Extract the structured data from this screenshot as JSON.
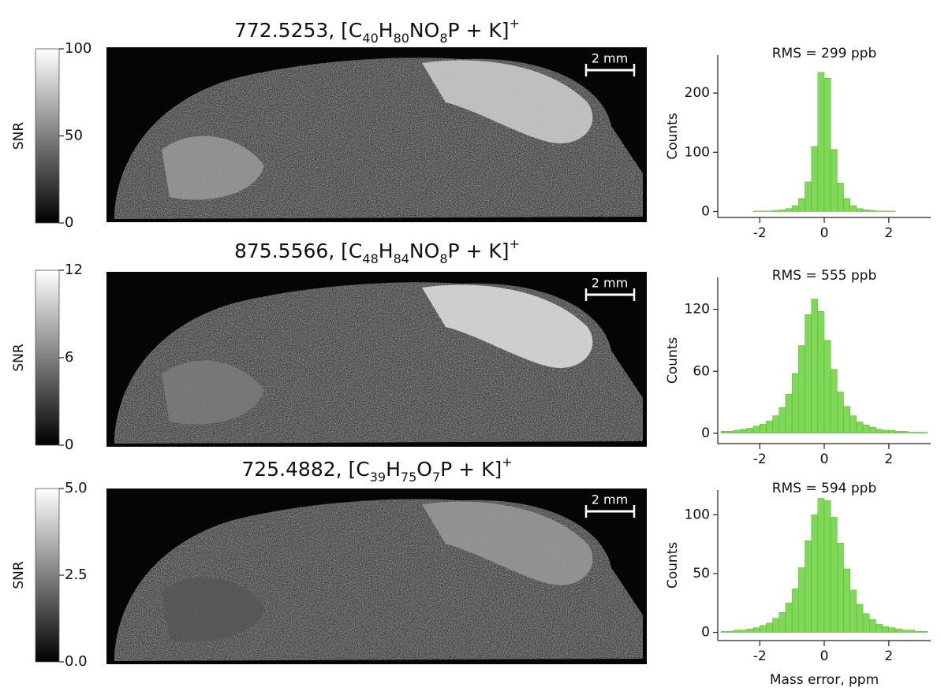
{
  "chart_data": [
    {
      "type": "histogram",
      "title": [
        {
          "text": "772.5253, [C",
          "shift": "none"
        },
        {
          "text": "40",
          "shift": "sub"
        },
        {
          "text": "H",
          "shift": "none"
        },
        {
          "text": "80",
          "shift": "sub"
        },
        {
          "text": "NO",
          "shift": "none"
        },
        {
          "text": "8",
          "shift": "sub"
        },
        {
          "text": "P + K]",
          "shift": "none"
        },
        {
          "text": "+",
          "shift": "super"
        }
      ],
      "colorbar_label": "SNR",
      "colorbar_lim": [
        0,
        100
      ],
      "colorbar_ticks": [
        0,
        50,
        100
      ],
      "scale_bar": "2 mm",
      "annotation": "RMS = 299 ppb",
      "ylabel": "Counts",
      "bins": [
        -3.2,
        -3.0,
        -2.8,
        -2.6,
        -2.4,
        -2.2,
        -2.0,
        -1.8,
        -1.6,
        -1.4,
        -1.2,
        -1.0,
        -0.8,
        -0.6,
        -0.4,
        -0.2,
        0,
        0.2,
        0.4,
        0.6,
        0.8,
        1.0,
        1.2,
        1.4,
        1.6,
        1.8,
        2.0,
        2.2,
        2.4,
        2.6,
        2.8,
        3.0,
        3.2
      ],
      "counts": [
        0,
        0,
        0,
        0,
        0,
        1,
        1,
        1,
        2,
        3,
        5,
        10,
        22,
        50,
        110,
        235,
        225,
        105,
        48,
        22,
        10,
        5,
        3,
        2,
        1,
        1,
        1,
        0,
        0,
        0,
        0,
        0
      ],
      "color": "#7ed957",
      "xlim": [
        -3.3,
        3.3
      ],
      "xticks": [
        -2,
        0,
        2
      ],
      "ylim": [
        -10,
        264
      ],
      "yticks": [
        0,
        100,
        200
      ]
    },
    {
      "type": "histogram",
      "title": [
        {
          "text": "875.5566, [C",
          "shift": "none"
        },
        {
          "text": "48",
          "shift": "sub"
        },
        {
          "text": "H",
          "shift": "none"
        },
        {
          "text": "84",
          "shift": "sub"
        },
        {
          "text": "NO",
          "shift": "none"
        },
        {
          "text": "8",
          "shift": "sub"
        },
        {
          "text": "P + K]",
          "shift": "none"
        },
        {
          "text": "+",
          "shift": "super"
        }
      ],
      "colorbar_label": "SNR",
      "colorbar_lim": [
        0,
        12
      ],
      "colorbar_ticks": [
        0,
        6,
        12
      ],
      "scale_bar": "2 mm",
      "annotation": "RMS = 555 ppb",
      "ylabel": "Counts",
      "bins": [
        -3.2,
        -3.0,
        -2.8,
        -2.6,
        -2.4,
        -2.2,
        -2.0,
        -1.8,
        -1.6,
        -1.4,
        -1.2,
        -1.0,
        -0.8,
        -0.6,
        -0.4,
        -0.2,
        0,
        0.2,
        0.4,
        0.6,
        0.8,
        1.0,
        1.2,
        1.4,
        1.6,
        1.8,
        2.0,
        2.2,
        2.4,
        2.6,
        2.8,
        3.0,
        3.2
      ],
      "counts": [
        2,
        2,
        3,
        4,
        5,
        7,
        9,
        12,
        17,
        25,
        38,
        58,
        85,
        115,
        130,
        118,
        90,
        62,
        40,
        26,
        17,
        11,
        8,
        6,
        4,
        3,
        3,
        2,
        2,
        1,
        1,
        1
      ],
      "color": "#7ed957",
      "xlim": [
        -3.3,
        3.3
      ],
      "xticks": [
        -2,
        0,
        2
      ],
      "ylim": [
        -10,
        151
      ],
      "yticks": [
        0,
        60,
        120
      ]
    },
    {
      "type": "histogram",
      "title": [
        {
          "text": "725.4882, [C",
          "shift": "none"
        },
        {
          "text": "39",
          "shift": "sub"
        },
        {
          "text": "H",
          "shift": "none"
        },
        {
          "text": "75",
          "shift": "sub"
        },
        {
          "text": "O",
          "shift": "none"
        },
        {
          "text": "7",
          "shift": "sub"
        },
        {
          "text": "P + K]",
          "shift": "none"
        },
        {
          "text": "+",
          "shift": "super"
        }
      ],
      "colorbar_label": "SNR",
      "colorbar_lim": [
        0,
        5
      ],
      "colorbar_ticks": [
        {
          "value": 0,
          "label": "0.0"
        },
        2.5,
        {
          "value": 5,
          "label": "5.0"
        }
      ],
      "scale_bar": "2 mm",
      "annotation": "RMS = 594 ppb",
      "ylabel": "Counts",
      "xlabel": "Mass error, ppm",
      "bins": [
        -3.2,
        -3.0,
        -2.8,
        -2.6,
        -2.4,
        -2.2,
        -2.0,
        -1.8,
        -1.6,
        -1.4,
        -1.2,
        -1.0,
        -0.8,
        -0.6,
        -0.4,
        -0.2,
        0,
        0.2,
        0.4,
        0.6,
        0.8,
        1.0,
        1.2,
        1.4,
        1.6,
        1.8,
        2.0,
        2.2,
        2.4,
        2.6,
        2.8,
        3.0,
        3.2
      ],
      "counts": [
        1,
        1,
        2,
        2,
        3,
        4,
        6,
        8,
        12,
        17,
        25,
        37,
        55,
        78,
        100,
        114,
        112,
        98,
        76,
        54,
        36,
        24,
        16,
        11,
        7,
        5,
        4,
        3,
        2,
        2,
        1,
        1
      ],
      "color": "#7ed957",
      "xlim": [
        -3.3,
        3.3
      ],
      "xticks": [
        -2,
        0,
        2
      ],
      "ylim": [
        -7,
        121
      ],
      "yticks": [
        0,
        50,
        100
      ]
    }
  ]
}
